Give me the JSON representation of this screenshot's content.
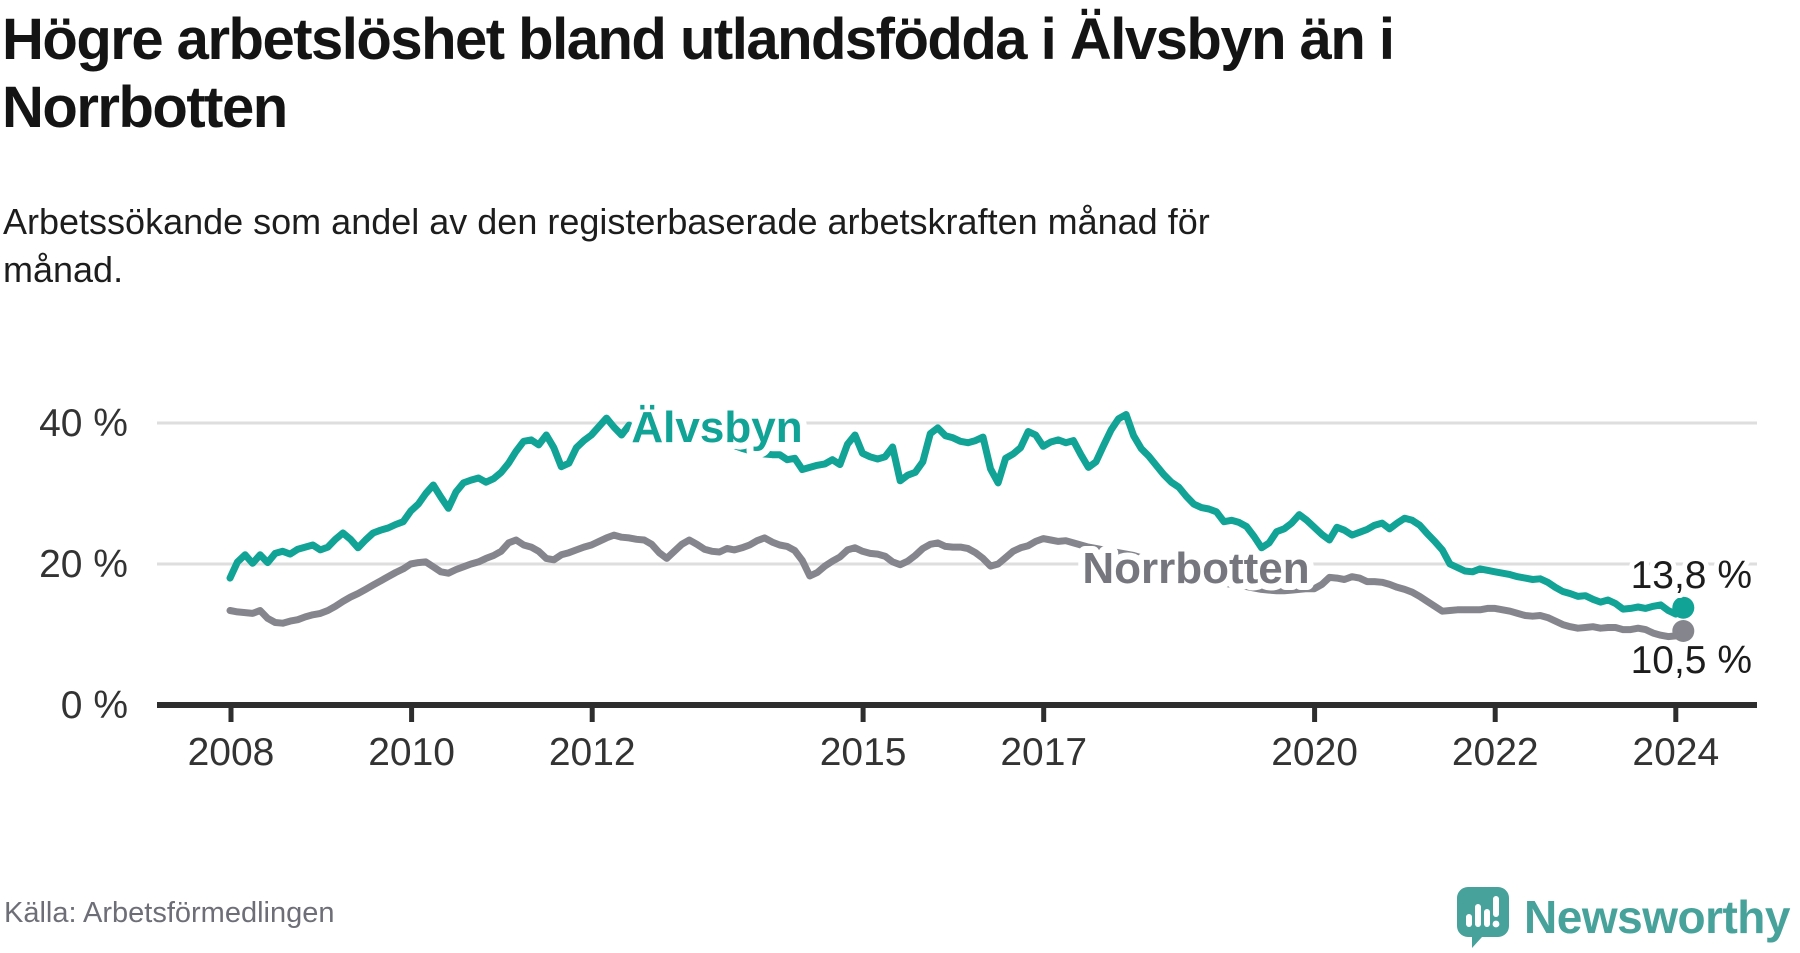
{
  "header": {
    "title": "Högre arbetslöshet bland utlandsfödda i Älvsbyn än i Norrbotten",
    "title_lines": [
      "Högre arbetslöshet bland utlandsfödda i Älvsbyn än i",
      "Norrbotten"
    ],
    "subtitle": "Arbetssökande som andel av den registerbaserade arbetskraften månad för månad.",
    "subtitle_lines": [
      "Arbetssökande som andel av den registerbaserade arbetskraften månad för",
      "månad."
    ]
  },
  "footer": {
    "source": "Källa: Arbetsförmedlingen",
    "brand": "Newsworthy"
  },
  "colors": {
    "alvsbyn": "#11a396",
    "norrbotten": "#85858d",
    "norrbotten_label": "#76767f",
    "axis": "#2e2e2e",
    "grid": "#dedede",
    "tick_text": "#333333",
    "end_label_text": "#1c1c1c",
    "brand_teal": "#46a29a"
  },
  "chart_data": {
    "type": "line",
    "title": "Högre arbetslöshet bland utlandsfödda i Älvsbyn än i Norrbotten",
    "xlabel": "",
    "ylabel": "Arbetssökande som andel av den registerbaserade arbetskraften",
    "x_unit": "month",
    "x_start": "2008-01",
    "x_end": "2024-02",
    "ylim": [
      0,
      44
    ],
    "grid": "horizontal",
    "legend_position": "inline-labels",
    "y_ticks": [
      {
        "label": "0 %",
        "v": 0
      },
      {
        "label": "20 %",
        "v": 20
      },
      {
        "label": "40 %",
        "v": 40
      }
    ],
    "x_ticks": [
      {
        "label": "2008",
        "year": 2008
      },
      {
        "label": "2010",
        "year": 2010
      },
      {
        "label": "2012",
        "year": 2012
      },
      {
        "label": "2015",
        "year": 2015
      },
      {
        "label": "2017",
        "year": 2017
      },
      {
        "label": "2020",
        "year": 2020
      },
      {
        "label": "2022",
        "year": 2022
      },
      {
        "label": "2024",
        "year": 2024
      }
    ],
    "series": [
      {
        "name": "Älvsbyn",
        "color": "#11a396",
        "end_label": "13,8 %",
        "end_value": 13.8,
        "values": [
          18.0,
          20.3,
          21.3,
          20.1,
          21.3,
          20.2,
          21.5,
          21.8,
          21.4,
          22.1,
          22.4,
          22.7,
          22.0,
          22.4,
          23.5,
          24.4,
          23.5,
          22.3,
          23.4,
          24.4,
          24.8,
          25.1,
          25.6,
          26.0,
          27.5,
          28.5,
          30.0,
          31.2,
          29.5,
          27.9,
          30.2,
          31.5,
          31.9,
          32.2,
          31.6,
          32.1,
          33.0,
          34.3,
          36.0,
          37.4,
          37.6,
          36.9,
          38.3,
          36.5,
          33.8,
          34.3,
          36.5,
          37.5,
          38.3,
          39.5,
          40.7,
          39.4,
          38.3,
          39.7,
          37.8,
          38.6,
          39.4,
          40.1,
          39.0,
          39.3,
          39.6,
          39.2,
          38.8,
          38.4,
          38.0,
          37.6,
          37.2,
          36.8,
          36.4,
          36.1,
          35.8,
          35.6,
          35.5,
          35.5,
          34.8,
          35.0,
          33.4,
          33.7,
          34.0,
          34.2,
          34.8,
          34.1,
          37.0,
          38.3,
          35.7,
          35.2,
          34.9,
          35.2,
          36.6,
          31.8,
          32.6,
          33.0,
          34.5,
          38.5,
          39.3,
          38.2,
          37.9,
          37.4,
          37.2,
          37.5,
          38.0,
          33.5,
          31.5,
          35.0,
          35.6,
          36.5,
          38.8,
          38.3,
          36.7,
          37.3,
          37.6,
          37.2,
          37.5,
          35.5,
          33.7,
          34.5,
          36.8,
          39.0,
          40.6,
          41.2,
          38.2,
          36.4,
          35.3,
          34.0,
          32.7,
          31.6,
          30.9,
          29.6,
          28.5,
          28.0,
          27.8,
          27.4,
          26.0,
          26.2,
          25.9,
          25.3,
          23.9,
          22.3,
          23.0,
          24.6,
          25.0,
          25.8,
          27.0,
          26.2,
          25.2,
          24.2,
          23.4,
          25.2,
          24.8,
          24.1,
          24.5,
          24.9,
          25.5,
          25.8,
          25.0,
          25.8,
          26.5,
          26.2,
          25.5,
          24.3,
          23.2,
          22.0,
          20.0,
          19.5,
          19.0,
          18.9,
          19.3,
          19.1,
          18.9,
          18.7,
          18.5,
          18.2,
          18.0,
          17.8,
          17.9,
          17.4,
          16.7,
          16.1,
          15.8,
          15.4,
          15.5,
          15.0,
          14.6,
          14.9,
          14.4,
          13.6,
          13.7,
          13.9,
          13.7,
          14.0,
          14.2,
          13.4,
          12.9,
          13.8
        ]
      },
      {
        "name": "Norrbotten",
        "color": "#85858d",
        "end_label": "10,5 %",
        "end_value": 10.5,
        "values": [
          13.4,
          13.2,
          13.1,
          13.0,
          13.4,
          12.3,
          11.7,
          11.6,
          11.9,
          12.1,
          12.5,
          12.8,
          13.0,
          13.4,
          14.0,
          14.7,
          15.3,
          15.8,
          16.4,
          17.0,
          17.6,
          18.2,
          18.8,
          19.3,
          20.0,
          20.2,
          20.3,
          19.6,
          18.9,
          18.7,
          19.2,
          19.6,
          20.0,
          20.3,
          20.8,
          21.2,
          21.8,
          23.0,
          23.4,
          22.7,
          22.4,
          21.8,
          20.8,
          20.6,
          21.3,
          21.6,
          22.0,
          22.4,
          22.7,
          23.2,
          23.7,
          24.1,
          23.8,
          23.7,
          23.5,
          23.4,
          22.8,
          21.6,
          20.8,
          21.8,
          22.8,
          23.4,
          22.8,
          22.1,
          21.8,
          21.7,
          22.2,
          22.0,
          22.3,
          22.7,
          23.3,
          23.7,
          23.1,
          22.7,
          22.5,
          21.9,
          20.5,
          18.3,
          18.8,
          19.7,
          20.4,
          21.0,
          22.0,
          22.3,
          21.8,
          21.5,
          21.4,
          21.1,
          20.3,
          19.9,
          20.4,
          21.2,
          22.2,
          22.8,
          23.0,
          22.5,
          22.4,
          22.4,
          22.2,
          21.6,
          20.8,
          19.7,
          20.0,
          20.9,
          21.8,
          22.3,
          22.6,
          23.2,
          23.6,
          23.4,
          23.2,
          23.3,
          23.0,
          22.7,
          22.4,
          22.2,
          22.0,
          21.8,
          21.6,
          21.4,
          21.2,
          20.9,
          20.5,
          20.1,
          19.7,
          19.3,
          18.9,
          18.5,
          18.2,
          17.9,
          17.7,
          17.5,
          17.3,
          17.1,
          17.0,
          16.8,
          16.6,
          16.4,
          16.3,
          16.2,
          16.2,
          16.3,
          16.4,
          16.5,
          16.5,
          17.1,
          18.1,
          18.0,
          17.8,
          18.2,
          18.0,
          17.5,
          17.5,
          17.4,
          17.1,
          16.7,
          16.4,
          16.0,
          15.4,
          14.7,
          14.0,
          13.3,
          13.4,
          13.5,
          13.5,
          13.5,
          13.5,
          13.7,
          13.7,
          13.5,
          13.3,
          13.0,
          12.7,
          12.6,
          12.7,
          12.4,
          11.9,
          11.4,
          11.1,
          10.9,
          11.0,
          11.1,
          10.9,
          11.0,
          11.0,
          10.7,
          10.7,
          10.9,
          10.7,
          10.2,
          9.9,
          9.7,
          9.8,
          10.5
        ]
      }
    ]
  }
}
